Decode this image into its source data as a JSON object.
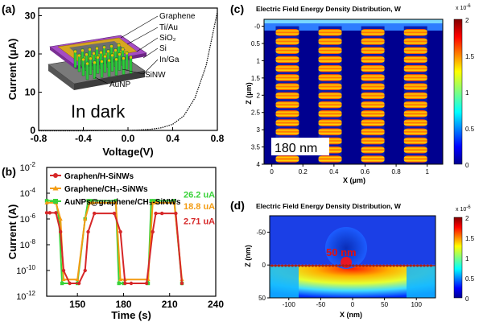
{
  "panels": {
    "a": "(a)",
    "b": "(b)",
    "c": "(c)",
    "d": "(d)"
  },
  "inset": {
    "annotation": "In dark",
    "layers": [
      "Graphene",
      "Ti/Au",
      "SiO₂",
      "Si",
      "In/Ga",
      "SiNW",
      "AuNP"
    ]
  },
  "map_c": {
    "title": "Electric Field Energy Density Distribution, W",
    "scale_label": "x 10",
    "scale_exp": "-6",
    "label": "180 nm",
    "cbar_ticks": [
      "2",
      "1.5",
      "1",
      "0.5",
      "0"
    ]
  },
  "map_d": {
    "title": "Electric Field Energy Density Distribution, W",
    "scale_label": "x 10",
    "scale_exp": "-6",
    "label": "50 nm",
    "cbar_ticks": [
      "2",
      "1.5",
      "1",
      "0.5",
      "0"
    ]
  },
  "colors": {
    "red": "#d62728",
    "orange": "#f39c12",
    "green": "#39d239",
    "blue": "#00008f",
    "gold": "#d4a017"
  },
  "chart_data": [
    {
      "id": "a",
      "type": "line",
      "xlabel": "Voltage(V)",
      "ylabel": "Current (μA)",
      "xlim": [
        -0.8,
        0.8
      ],
      "ylim": [
        0,
        32
      ],
      "xticks": [
        "-0.8",
        "-0.4",
        "0.0",
        "0.4",
        "0.8"
      ],
      "yticks": [
        "0",
        "10",
        "20",
        "30"
      ],
      "x": [
        -0.8,
        -0.4,
        0.0,
        0.1,
        0.2,
        0.3,
        0.4,
        0.5,
        0.6,
        0.7,
        0.8
      ],
      "y": [
        -0.1,
        -0.1,
        0.0,
        0.1,
        0.3,
        0.7,
        1.6,
        3.8,
        8.5,
        17.0,
        31.0
      ]
    },
    {
      "id": "b",
      "type": "line",
      "xlabel": "Time (s)",
      "ylabel": "Current (A)",
      "yscale": "log",
      "xlim": [
        130,
        240
      ],
      "ylim": [
        1e-12,
        0.01
      ],
      "xticks": [
        "150",
        "180",
        "210",
        "240"
      ],
      "yticks": [
        "10",
        "10",
        "10",
        "10",
        "10",
        "10"
      ],
      "yticks_exp": [
        "-2",
        "-4",
        "-6",
        "-8",
        "-10",
        "-12"
      ],
      "series": [
        {
          "name": "Graphen/H-SiNWs",
          "end_label": "2.71 uA",
          "x": [
            130,
            132,
            136,
            139,
            141,
            145,
            151,
            155,
            157,
            161,
            174,
            178,
            181,
            185,
            195,
            199,
            201,
            205,
            214,
            218
          ],
          "y": [
            3e-06,
            3e-06,
            3e-06,
            1e-07,
            1e-10,
            1e-11,
            1e-11,
            1e-10,
            1e-07,
            2.7e-06,
            2.7e-06,
            1e-07,
            1e-11,
            1e-11,
            1e-11,
            1e-07,
            2.7e-06,
            2.7e-06,
            2.7e-06,
            1e-11
          ]
        },
        {
          "name": "Graphene/CH₃-SiNWs",
          "end_label": "18.8 uA",
          "x": [
            130,
            136,
            139,
            141,
            150,
            155,
            158,
            160,
            175,
            178,
            181,
            196,
            199,
            201,
            213,
            218
          ],
          "y": [
            1.8e-05,
            1.8e-05,
            1e-06,
            2e-11,
            2e-11,
            1e-06,
            1.8e-05,
            1.8e-05,
            1.8e-05,
            2e-11,
            2e-11,
            2e-11,
            1.8e-05,
            1.8e-05,
            1.8e-05,
            2e-11
          ]
        },
        {
          "name": "AuNPs@graphene/CH₃-SiNWs",
          "end_label": "26.2 uA",
          "x": [
            130,
            136,
            138,
            140,
            150,
            155,
            157,
            159,
            175,
            177,
            180,
            196,
            198,
            200,
            213,
            218
          ],
          "y": [
            2.6e-05,
            2.6e-05,
            1e-06,
            1e-11,
            1e-11,
            1e-06,
            2.6e-05,
            2.6e-05,
            2.6e-05,
            1e-11,
            1e-11,
            1e-11,
            2.6e-05,
            2.6e-05,
            2.6e-05,
            1e-11
          ]
        }
      ]
    },
    {
      "id": "c",
      "type": "heatmap",
      "xlabel": "X (μm)",
      "ylabel": "Z (μm)",
      "xlim": [
        -0.05,
        1.1
      ],
      "ylim": [
        -0.2,
        4
      ],
      "xticks": [
        "0",
        "0.2",
        "0.4",
        "0.6",
        "0.8",
        "1"
      ],
      "yticks": [
        "-0",
        "0.5",
        "1",
        "1.5",
        "2",
        "2.5",
        "3",
        "3.5",
        "4"
      ],
      "colorbar_range": [
        0,
        2e-06
      ]
    },
    {
      "id": "d",
      "type": "heatmap",
      "xlabel": "X (nm)",
      "ylabel": "Z (nm)",
      "xlim": [
        -130,
        130
      ],
      "ylim": [
        -75,
        50
      ],
      "xticks": [
        "-100",
        "-50",
        "0",
        "50",
        "100"
      ],
      "yticks": [
        "-50",
        "0",
        "50"
      ],
      "colorbar_range": [
        0,
        2e-06
      ]
    }
  ]
}
